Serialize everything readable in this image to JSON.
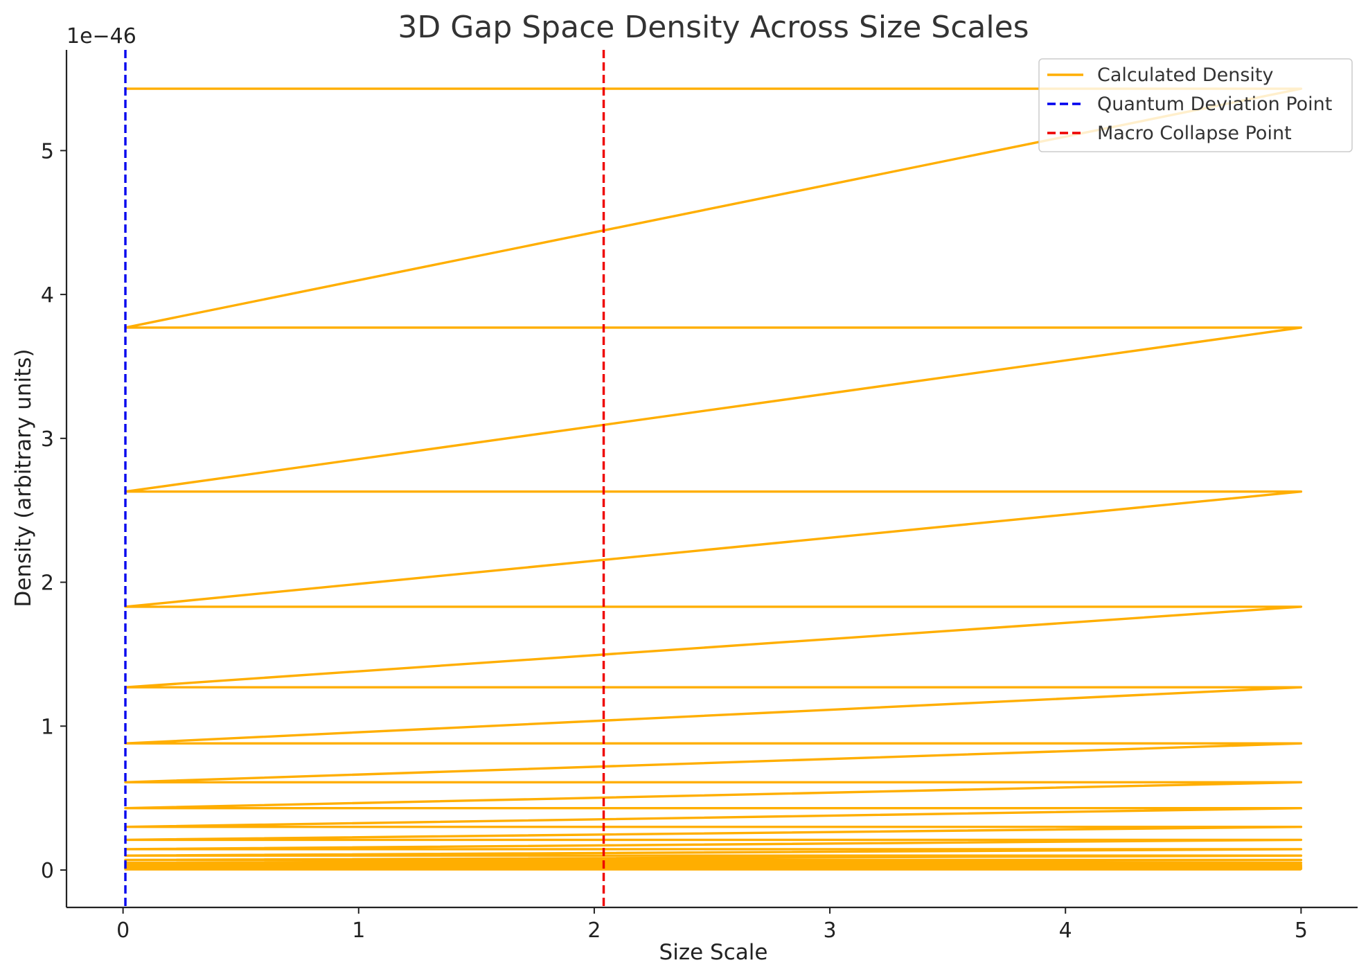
{
  "chart_data": {
    "type": "line",
    "title": "3D Gap Space Density Across Size Scales",
    "xlabel": "Size Scale",
    "ylabel": "Density (arbitrary units)",
    "y_offset_label": "1e−46",
    "xlim": [
      -0.24,
      5.24
    ],
    "ylim": [
      -0.26,
      5.7
    ],
    "x_ticks": [
      {
        "value": 0,
        "label": "0"
      },
      {
        "value": 1,
        "label": "1"
      },
      {
        "value": 2,
        "label": "2"
      },
      {
        "value": 3,
        "label": "3"
      },
      {
        "value": 4,
        "label": "4"
      },
      {
        "value": 5,
        "label": "5"
      }
    ],
    "y_ticks": [
      {
        "value": 0,
        "label": "0"
      },
      {
        "value": 1,
        "label": "1"
      },
      {
        "value": 2,
        "label": "2"
      },
      {
        "value": 3,
        "label": "3"
      },
      {
        "value": 4,
        "label": "4"
      },
      {
        "value": 5,
        "label": "5"
      }
    ],
    "grid": false,
    "legend_position": "top-right",
    "series": [
      {
        "name": "Calculated Density",
        "color": "#ffae00",
        "style": "solid",
        "x": [
          0.01,
          5,
          0.01,
          5,
          0.01,
          5,
          0.01,
          5,
          0.01,
          5,
          0.01,
          5,
          0.01,
          5,
          0.01,
          5,
          0.01,
          5,
          0.01,
          5,
          0.01,
          5,
          0.01,
          5,
          0.01,
          5,
          0.01,
          5,
          0.01,
          5,
          0.01,
          5,
          0.01,
          5,
          0.01,
          5,
          0.01,
          5,
          0.01,
          5
        ],
        "y": [
          5.43,
          5.43,
          3.77,
          3.77,
          2.63,
          2.63,
          1.83,
          1.83,
          1.27,
          1.27,
          0.88,
          0.88,
          0.61,
          0.61,
          0.43,
          0.43,
          0.3,
          0.3,
          0.21,
          0.21,
          0.145,
          0.145,
          0.1,
          0.1,
          0.07,
          0.07,
          0.05,
          0.05,
          0.035,
          0.035,
          0.024,
          0.024,
          0.017,
          0.017,
          0.012,
          0.012,
          0.008,
          0.008,
          0.005,
          0.005
        ]
      },
      {
        "name": "Quantum Deviation Point",
        "color": "#0000ee",
        "style": "dashed",
        "vline_x": 0.01
      },
      {
        "name": "Macro Collapse Point",
        "color": "#ee0000",
        "style": "dashed",
        "vline_x": 2.04
      }
    ]
  }
}
